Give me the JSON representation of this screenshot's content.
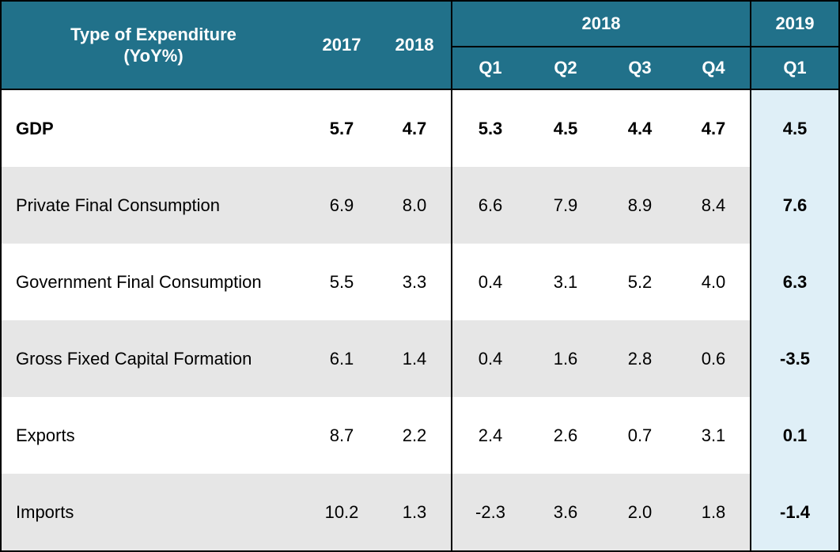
{
  "table": {
    "header": {
      "type_label": "Type of Expenditure",
      "type_sublabel": "(YoY%)",
      "annual_cols": [
        "2017",
        "2018"
      ],
      "group_2018": "2018",
      "group_2019": "2019",
      "quarters_2018": [
        "Q1",
        "Q2",
        "Q3",
        "Q4"
      ],
      "quarters_2019": [
        "Q1"
      ]
    },
    "rows": [
      {
        "label": "GDP",
        "bold": true,
        "y2017": "5.7",
        "y2018": "4.7",
        "q1_2018": "5.3",
        "q2_2018": "4.5",
        "q3_2018": "4.4",
        "q4_2018": "4.7",
        "q1_2019": "4.5"
      },
      {
        "label": "Private Final Consumption",
        "bold": false,
        "y2017": "6.9",
        "y2018": "8.0",
        "q1_2018": "6.6",
        "q2_2018": "7.9",
        "q3_2018": "8.9",
        "q4_2018": "8.4",
        "q1_2019": "7.6"
      },
      {
        "label": "Government Final Consumption",
        "bold": false,
        "y2017": "5.5",
        "y2018": "3.3",
        "q1_2018": "0.4",
        "q2_2018": "3.1",
        "q3_2018": "5.2",
        "q4_2018": "4.0",
        "q1_2019": "6.3"
      },
      {
        "label": "Gross Fixed Capital Formation",
        "bold": false,
        "y2017": "6.1",
        "y2018": "1.4",
        "q1_2018": "0.4",
        "q2_2018": "1.6",
        "q3_2018": "2.8",
        "q4_2018": "0.6",
        "q1_2019": "-3.5"
      },
      {
        "label": "Exports",
        "bold": false,
        "y2017": "8.7",
        "y2018": "2.2",
        "q1_2018": "2.4",
        "q2_2018": "2.6",
        "q3_2018": "0.7",
        "q4_2018": "3.1",
        "q1_2019": "0.1"
      },
      {
        "label": "Imports",
        "bold": false,
        "y2017": "10.2",
        "y2018": "1.3",
        "q1_2018": "-2.3",
        "q2_2018": "3.6",
        "q3_2018": "2.0",
        "q4_2018": "1.8",
        "q1_2019": "-1.4"
      }
    ]
  },
  "colors": {
    "header_bg": "#21718a",
    "header_text": "#ffffff",
    "shaded_row": "#e6e6e6",
    "highlight_col": "#dfeff7"
  }
}
